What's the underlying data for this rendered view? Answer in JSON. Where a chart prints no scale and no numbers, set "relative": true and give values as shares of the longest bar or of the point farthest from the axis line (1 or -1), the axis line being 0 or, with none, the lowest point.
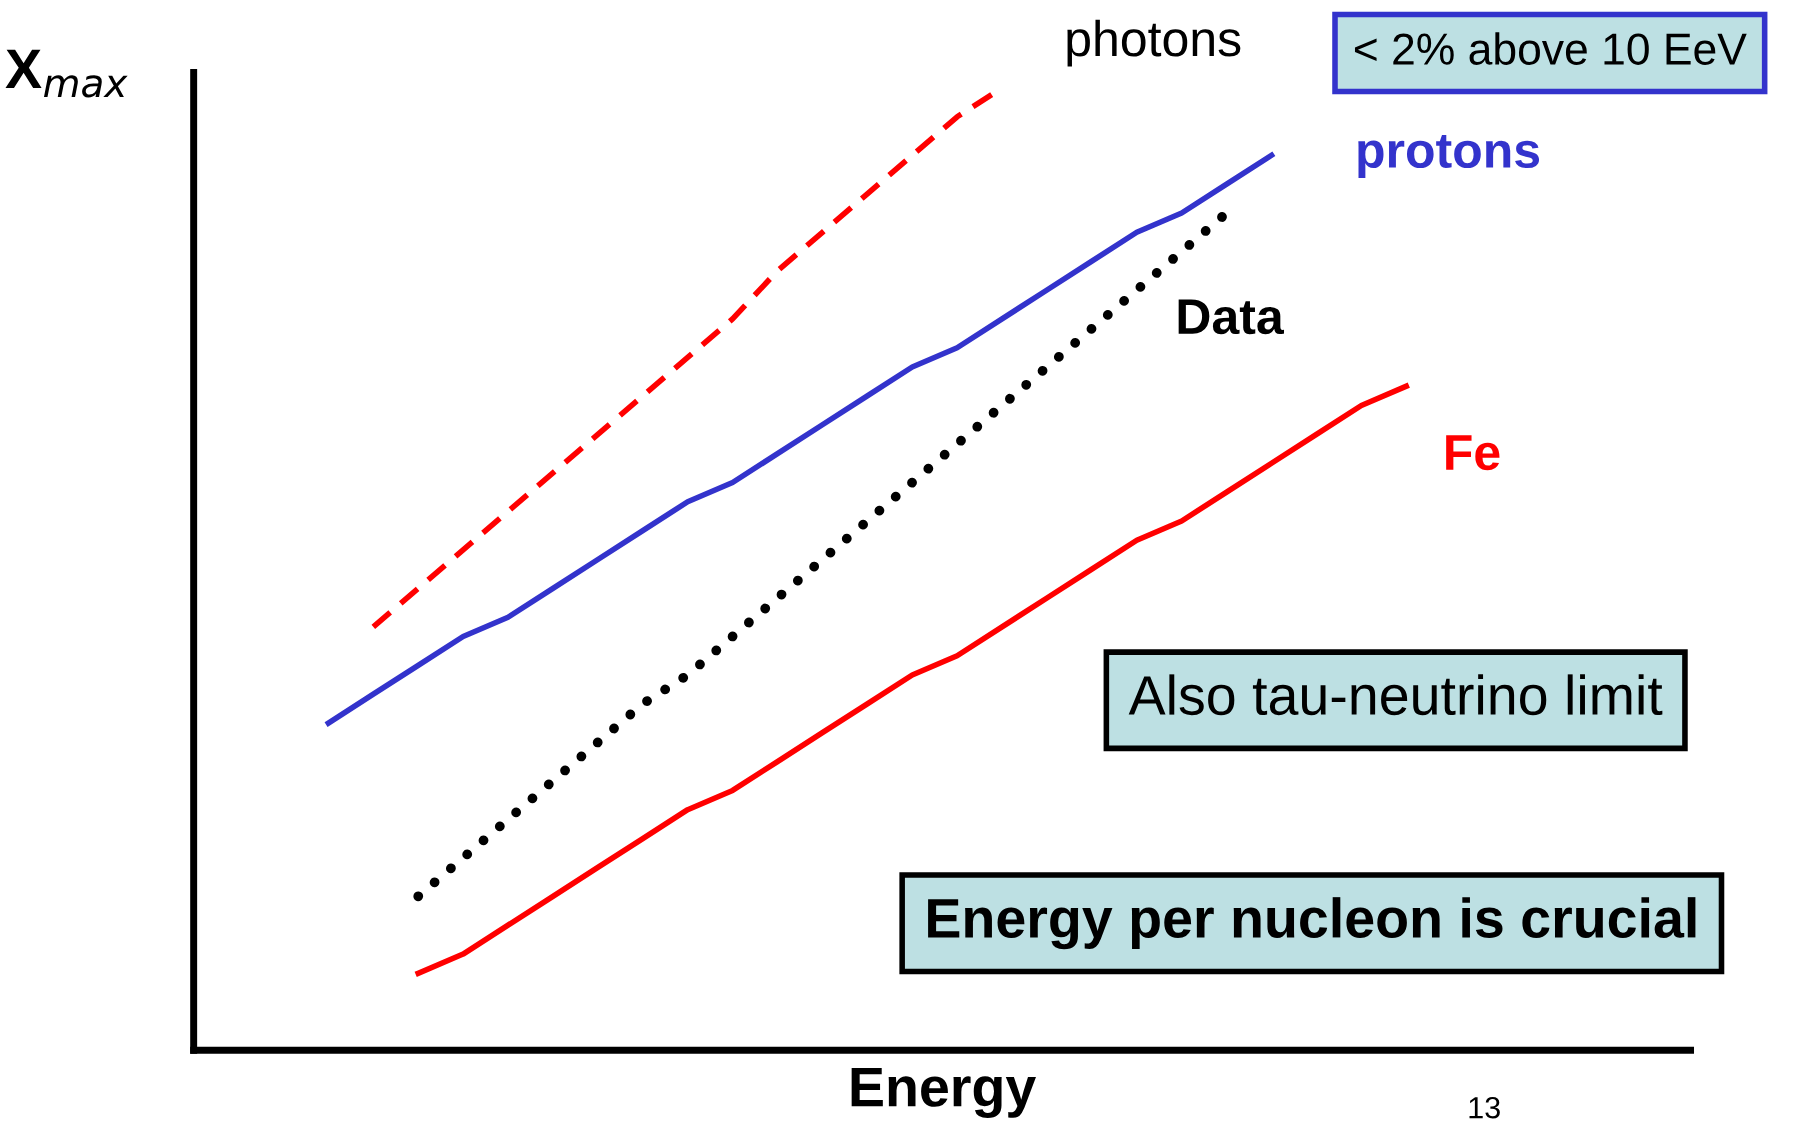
{
  "chart_data": {
    "type": "line",
    "relative": true,
    "xlabel": "Energy",
    "ylabel": "X$_{max}$",
    "categories": [
      null,
      null,
      null,
      null,
      null,
      null,
      null,
      null,
      null,
      null,
      null,
      null,
      null,
      null,
      null,
      null,
      null,
      null,
      null,
      null,
      null,
      null,
      null,
      null,
      null
    ],
    "series": [
      {
        "name": "photons",
        "color": "#ff0000",
        "line_style": "dashed",
        "values": [
          null,
          0.44,
          0.48,
          0.52,
          0.56,
          0.6,
          0.64,
          0.68,
          0.72,
          0.76,
          0.81,
          0.85,
          0.89,
          0.93,
          0.97,
          1.0,
          null,
          null,
          null,
          null,
          null,
          null,
          null,
          null,
          null
        ]
      },
      {
        "name": "protons",
        "color": "#3333cc",
        "line_style": "solid",
        "values": [
          0.34,
          0.37,
          0.4,
          0.43,
          0.45,
          0.48,
          0.51,
          0.54,
          0.57,
          0.59,
          0.62,
          0.65,
          0.68,
          0.71,
          0.73,
          0.76,
          0.79,
          0.82,
          0.85,
          0.87,
          0.9,
          0.93,
          null,
          null,
          null
        ]
      },
      {
        "name": "Data",
        "color": "#000000",
        "line_style": "dotted",
        "values": [
          null,
          null,
          0.16,
          0.2,
          0.24,
          0.28,
          0.32,
          0.36,
          0.39,
          0.43,
          0.47,
          0.51,
          0.55,
          0.59,
          0.63,
          0.67,
          0.71,
          0.75,
          0.79,
          0.83,
          0.87,
          null,
          null,
          null,
          null
        ]
      },
      {
        "name": "Fe",
        "color": "#ff0000",
        "line_style": "solid",
        "values": [
          null,
          null,
          0.08,
          0.1,
          0.13,
          0.16,
          0.19,
          0.22,
          0.25,
          0.27,
          0.3,
          0.33,
          0.36,
          0.39,
          0.41,
          0.44,
          0.47,
          0.5,
          0.53,
          0.55,
          0.58,
          0.61,
          0.64,
          0.67,
          0.69
        ]
      }
    ],
    "annotations": [
      "< 2% above 10 EeV",
      "Also tau-neutrino limit",
      "Energy per nucleon is crucial",
      "13"
    ]
  }
}
